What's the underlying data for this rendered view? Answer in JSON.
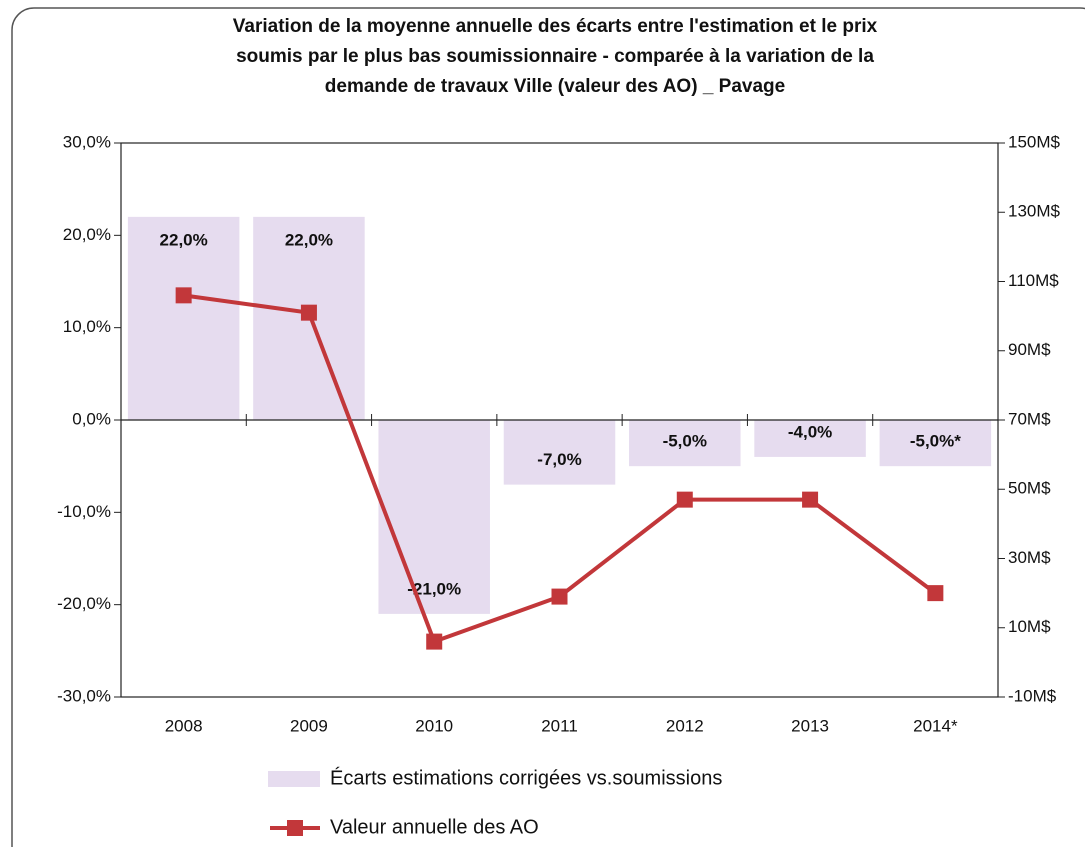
{
  "chart_data": {
    "type": "bar+line",
    "title": [
      "Variation de la moyenne annuelle des écarts entre l'estimation et le prix",
      "soumis par le plus bas soumissionnaire - comparée à la variation de la",
      "demande de travaux Ville (valeur des AO) _ Pavage"
    ],
    "categories": [
      "2008",
      "2009",
      "2010",
      "2011",
      "2012",
      "2013",
      "2014*"
    ],
    "series": [
      {
        "name": "Écarts estimations corrigées vs.soumissions",
        "type": "bar",
        "color": "#e6dcef",
        "axis": "y",
        "values": [
          22,
          22,
          -21,
          -7,
          -5,
          -4,
          -5
        ],
        "value_labels": [
          "22,0%",
          "22,0%",
          "-21,0%",
          "-7,0%",
          "-5,0%",
          "-4,0%",
          "-5,0%*"
        ]
      },
      {
        "name": "Valeur annuelle des AO",
        "type": "line",
        "color": "#c2373a",
        "axis": "y2",
        "values": [
          106,
          101,
          6,
          19,
          47,
          47,
          20
        ]
      }
    ],
    "ylim": [
      -30,
      30
    ],
    "yticks": [
      {
        "value": -30,
        "label": "-30,0%"
      },
      {
        "value": -20,
        "label": "-20,0%"
      },
      {
        "value": -10,
        "label": "-10,0%"
      },
      {
        "value": 0,
        "label": "0,0%"
      },
      {
        "value": 10,
        "label": "10,0%"
      },
      {
        "value": 20,
        "label": "20,0%"
      },
      {
        "value": 30,
        "label": "30,0%"
      }
    ],
    "y2lim": [
      -10,
      150
    ],
    "y2ticks": [
      {
        "value": -10,
        "label": "-10M$"
      },
      {
        "value": 10,
        "label": "10M$"
      },
      {
        "value": 30,
        "label": "30M$"
      },
      {
        "value": 50,
        "label": "50M$"
      },
      {
        "value": 70,
        "label": "70M$"
      },
      {
        "value": 90,
        "label": "90M$"
      },
      {
        "value": 110,
        "label": "110M$"
      },
      {
        "value": 130,
        "label": "130M$"
      },
      {
        "value": 150,
        "label": "150M$"
      }
    ],
    "legend": "bottom"
  }
}
